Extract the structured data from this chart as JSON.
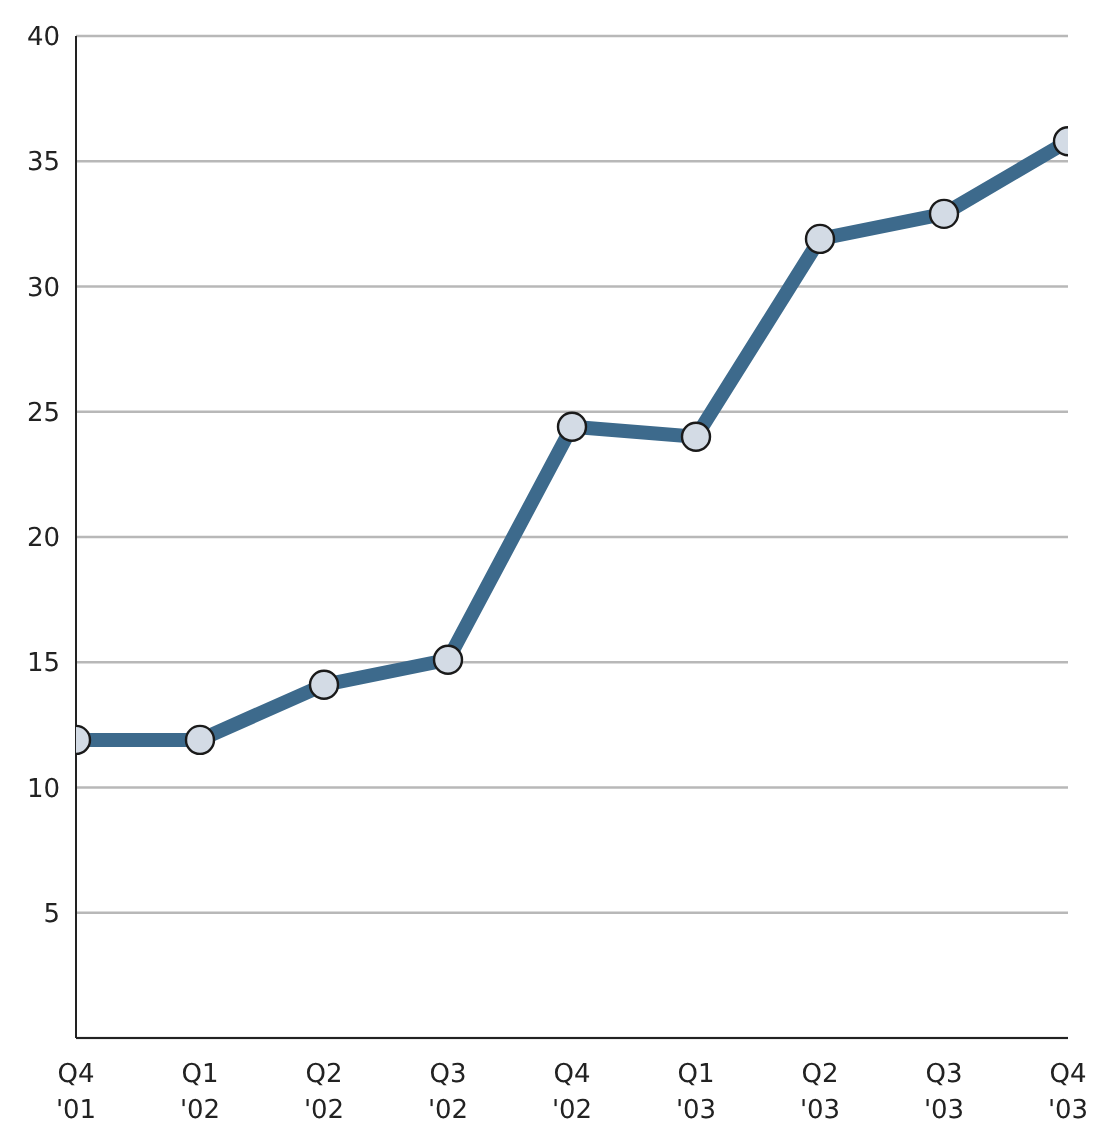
{
  "chart_data": {
    "type": "line",
    "categories": [
      "Q4 '01",
      "Q1 '02",
      "Q2 '02",
      "Q3 '02",
      "Q4 '02",
      "Q1 '03",
      "Q2 '03",
      "Q3 '03",
      "Q4 '03"
    ],
    "series": [
      {
        "color": "#3d6a8c",
        "values": [
          11.9,
          11.9,
          14.1,
          15.1,
          24.4,
          24.0,
          31.9,
          32.9,
          35.8
        ]
      }
    ],
    "ylim": [
      0,
      40
    ],
    "yticks": [
      5,
      10,
      15,
      20,
      25,
      30,
      35,
      40
    ],
    "grid": "y",
    "marker": "circle",
    "line_style": "solid"
  }
}
